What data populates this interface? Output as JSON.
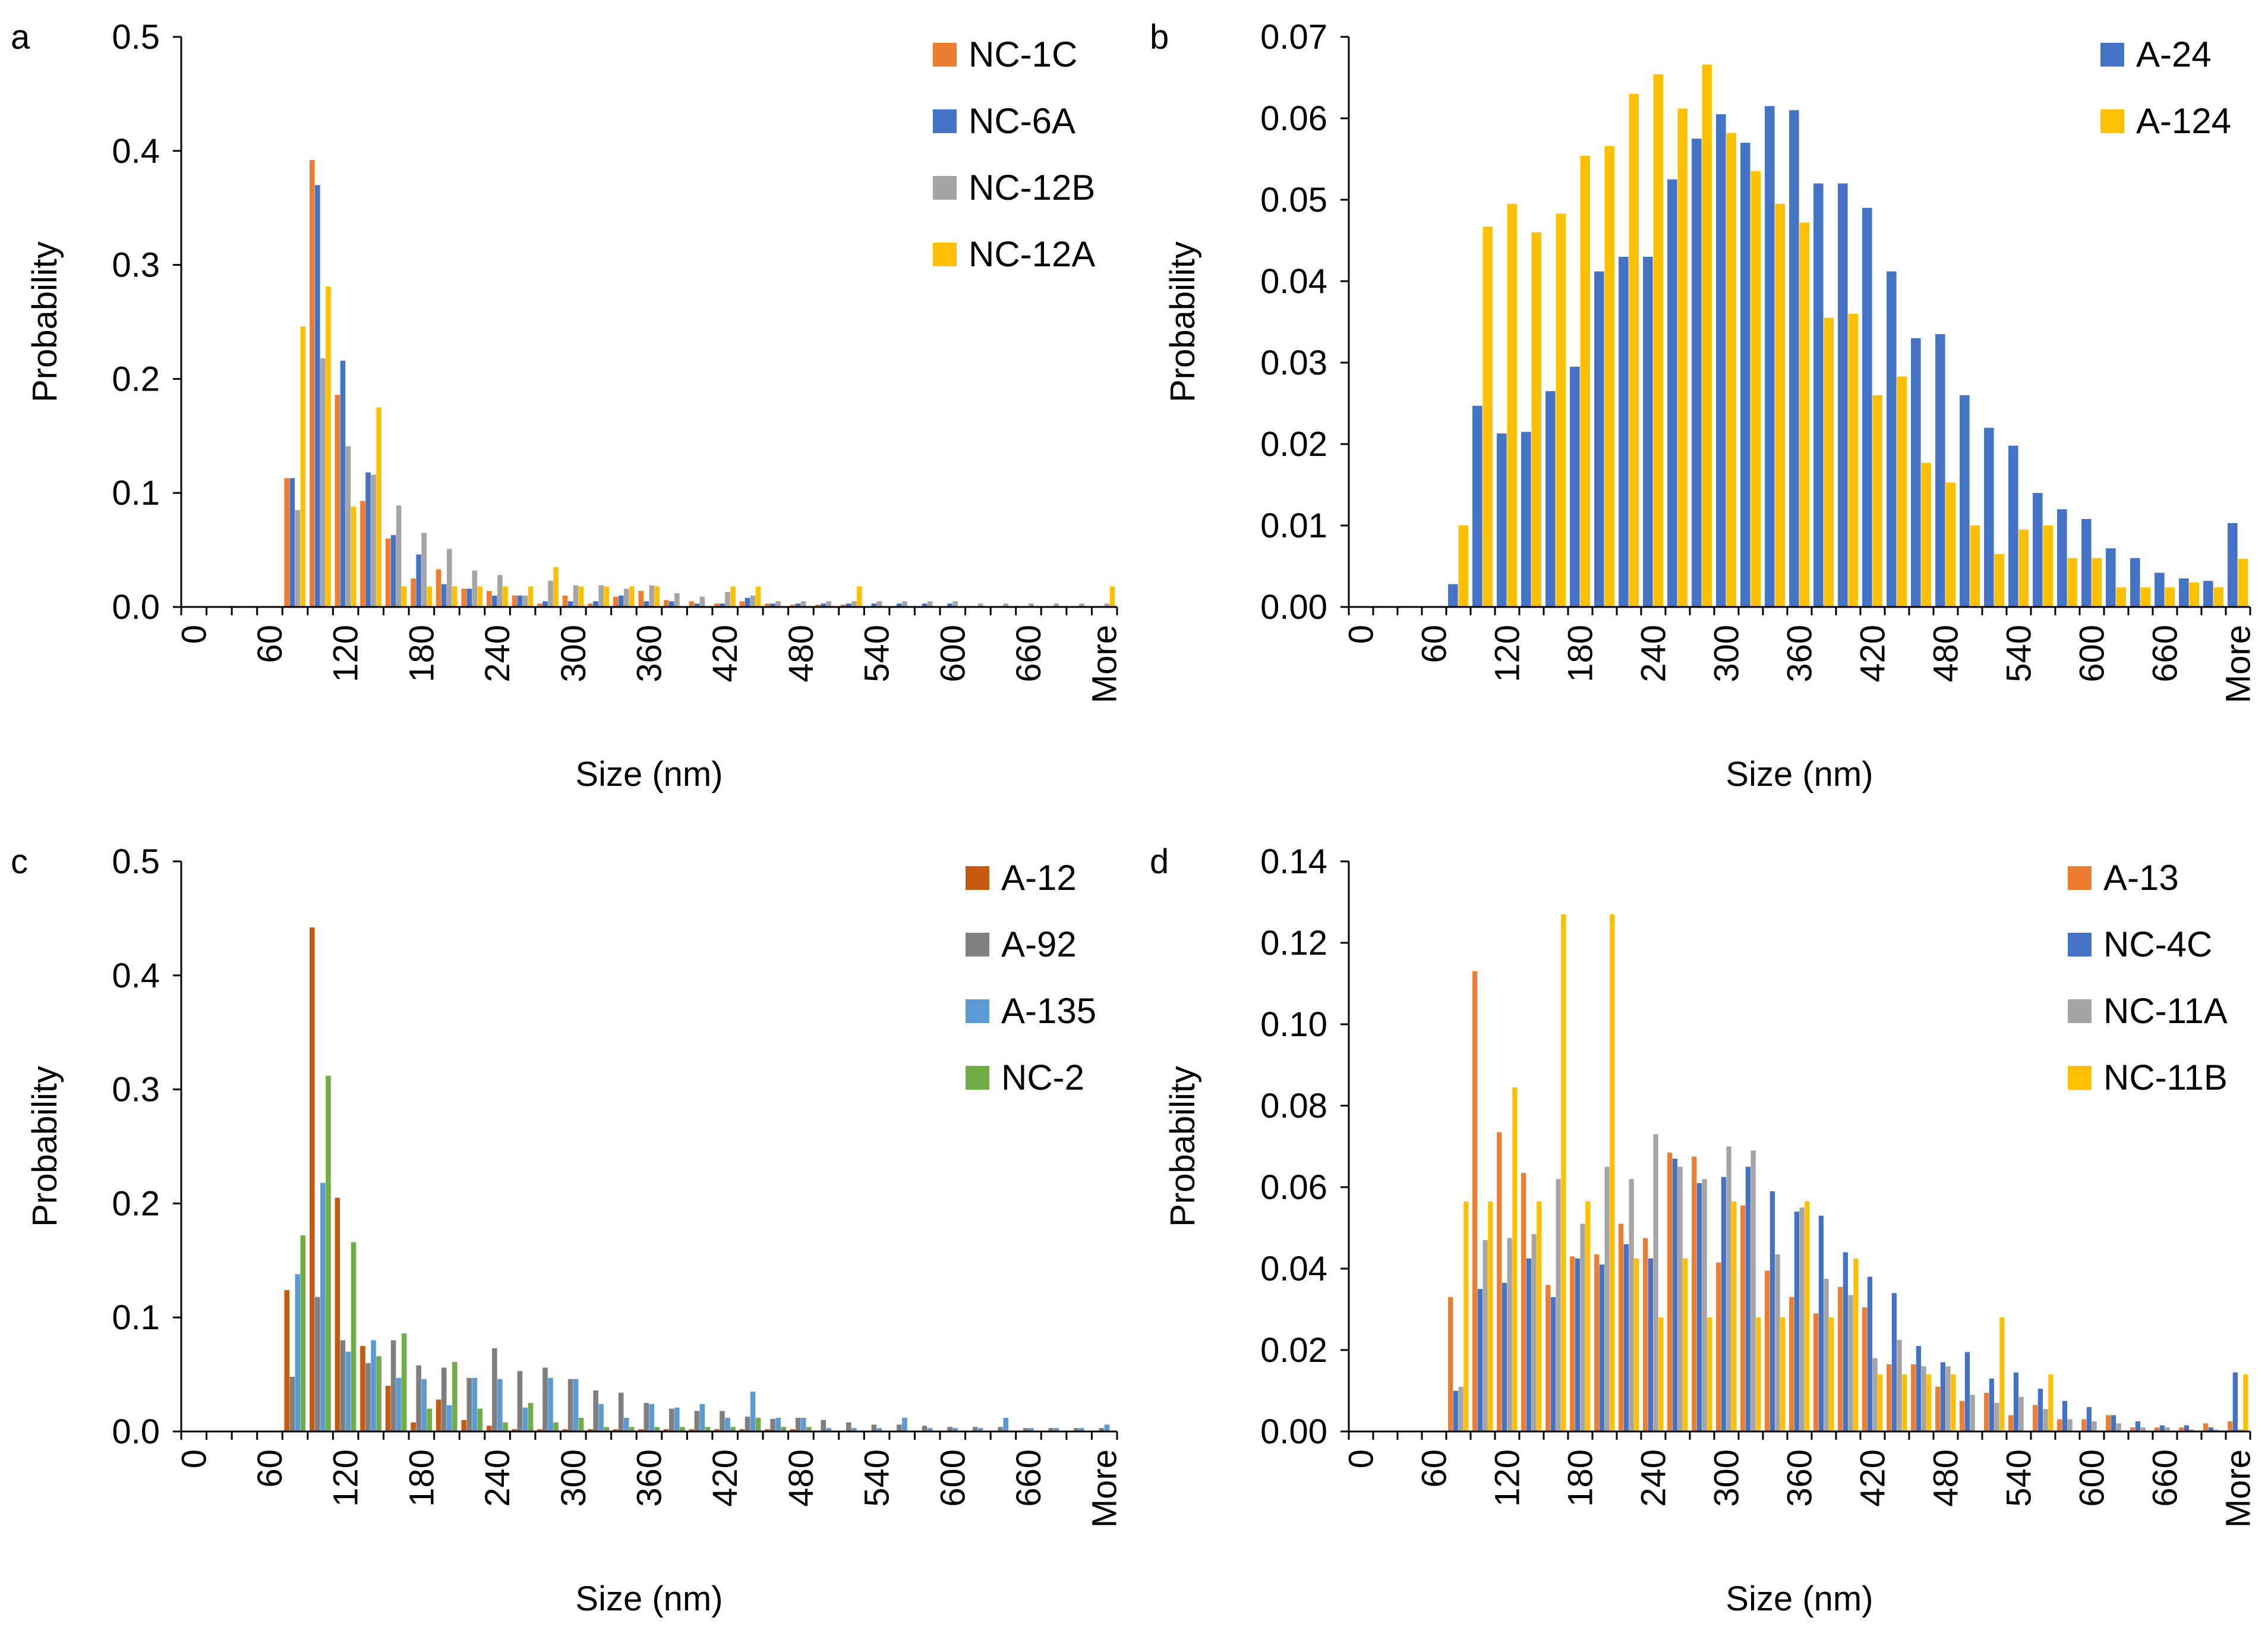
{
  "chart_data": [
    {
      "panel_label": "a",
      "type": "bar",
      "xlabel": "Size (nm)",
      "ylabel": "Probability",
      "ylim": [
        0,
        0.5
      ],
      "ytick_labels": [
        "0.0",
        "0.1",
        "0.2",
        "0.3",
        "0.4",
        "0.5"
      ],
      "categories": [
        "0",
        "20",
        "40",
        "60",
        "80",
        "100",
        "120",
        "140",
        "160",
        "180",
        "200",
        "220",
        "240",
        "260",
        "280",
        "300",
        "320",
        "340",
        "360",
        "380",
        "400",
        "420",
        "440",
        "460",
        "480",
        "500",
        "520",
        "540",
        "560",
        "580",
        "600",
        "620",
        "640",
        "660",
        "680",
        "700",
        "More"
      ],
      "xtick_labels": [
        "0",
        "",
        "",
        "60",
        "",
        "",
        "120",
        "",
        "",
        "180",
        "",
        "",
        "240",
        "",
        "",
        "300",
        "",
        "",
        "360",
        "",
        "",
        "420",
        "",
        "",
        "480",
        "",
        "",
        "540",
        "",
        "",
        "600",
        "",
        "",
        "660",
        "",
        "",
        "More"
      ],
      "legend_position": "top-right",
      "series": [
        {
          "name": "NC-1C",
          "color": "#ED7D31",
          "values": [
            0,
            0,
            0,
            0,
            0.113,
            0.392,
            0.186,
            0.093,
            0.06,
            0.025,
            0.033,
            0.016,
            0.014,
            0.01,
            0.003,
            0.01,
            0.003,
            0.009,
            0.014,
            0.006,
            0.005,
            0.003,
            0.005,
            0.003,
            0.002,
            0.002,
            0.002,
            0,
            0,
            0,
            0,
            0,
            0,
            0,
            0,
            0,
            0
          ]
        },
        {
          "name": "NC-6A",
          "color": "#4472C4",
          "values": [
            0,
            0,
            0,
            0,
            0.113,
            0.37,
            0.216,
            0.118,
            0.063,
            0.046,
            0.02,
            0.016,
            0.01,
            0.01,
            0.005,
            0.005,
            0.005,
            0.01,
            0.005,
            0.005,
            0.003,
            0.003,
            0.008,
            0.003,
            0.003,
            0.003,
            0.003,
            0.003,
            0.003,
            0.003,
            0.003,
            0,
            0,
            0,
            0,
            0,
            0
          ]
        },
        {
          "name": "NC-12B",
          "color": "#A5A5A5",
          "values": [
            0,
            0,
            0,
            0,
            0.085,
            0.218,
            0.141,
            0.116,
            0.089,
            0.065,
            0.051,
            0.032,
            0.028,
            0.01,
            0.023,
            0.019,
            0.019,
            0.016,
            0.019,
            0.012,
            0.009,
            0.013,
            0.01,
            0.005,
            0.005,
            0.005,
            0.005,
            0.005,
            0.005,
            0.005,
            0.005,
            0.003,
            0.003,
            0.003,
            0.003,
            0.003,
            0.003
          ]
        },
        {
          "name": "NC-12A",
          "color": "#FFC000",
          "values": [
            0,
            0,
            0,
            0,
            0.246,
            0.281,
            0.088,
            0.175,
            0.018,
            0.018,
            0.018,
            0.018,
            0.018,
            0.018,
            0.035,
            0.018,
            0.018,
            0.018,
            0.018,
            0,
            0,
            0.018,
            0.018,
            0,
            0,
            0,
            0.018,
            0,
            0,
            0,
            0,
            0,
            0,
            0,
            0,
            0,
            0.018
          ]
        }
      ]
    },
    {
      "panel_label": "b",
      "type": "bar",
      "xlabel": "Size (nm)",
      "ylabel": "Probability",
      "ylim": [
        0,
        0.07
      ],
      "ytick_labels": [
        "0.00",
        "0.01",
        "0.02",
        "0.03",
        "0.04",
        "0.05",
        "0.06",
        "0.07"
      ],
      "categories": [
        "0",
        "20",
        "40",
        "60",
        "80",
        "100",
        "120",
        "140",
        "160",
        "180",
        "200",
        "220",
        "240",
        "260",
        "280",
        "300",
        "320",
        "340",
        "360",
        "380",
        "400",
        "420",
        "440",
        "460",
        "480",
        "500",
        "520",
        "540",
        "560",
        "580",
        "600",
        "620",
        "640",
        "660",
        "680",
        "700",
        "More"
      ],
      "xtick_labels": [
        "0",
        "",
        "",
        "60",
        "",
        "",
        "120",
        "",
        "",
        "180",
        "",
        "",
        "240",
        "",
        "",
        "300",
        "",
        "",
        "360",
        "",
        "",
        "420",
        "",
        "",
        "480",
        "",
        "",
        "540",
        "",
        "",
        "600",
        "",
        "",
        "660",
        "",
        "",
        "More"
      ],
      "legend_position": "top-right",
      "series": [
        {
          "name": "A-24",
          "color": "#4472C4",
          "values": [
            0,
            0,
            0,
            0,
            0.0028,
            0.0247,
            0.0213,
            0.0215,
            0.0265,
            0.0295,
            0.0412,
            0.043,
            0.043,
            0.0525,
            0.0575,
            0.0605,
            0.057,
            0.0615,
            0.061,
            0.052,
            0.052,
            0.049,
            0.0412,
            0.033,
            0.0335,
            0.026,
            0.022,
            0.0198,
            0.014,
            0.012,
            0.0108,
            0.0072,
            0.006,
            0.0042,
            0.0035,
            0.0032,
            0.0103
          ]
        },
        {
          "name": "A-124",
          "color": "#FFC000",
          "values": [
            0,
            0,
            0,
            0,
            0.01,
            0.0467,
            0.0495,
            0.046,
            0.0483,
            0.0554,
            0.0566,
            0.063,
            0.0654,
            0.0612,
            0.0666,
            0.0582,
            0.0535,
            0.0495,
            0.0472,
            0.0355,
            0.036,
            0.026,
            0.0283,
            0.0177,
            0.0153,
            0.01,
            0.0065,
            0.0095,
            0.01,
            0.006,
            0.006,
            0.0024,
            0.0024,
            0.0024,
            0.003,
            0.0024,
            0.0059
          ]
        }
      ]
    },
    {
      "panel_label": "c",
      "type": "bar",
      "xlabel": "Size (nm)",
      "ylabel": "Probability",
      "ylim": [
        0,
        0.5
      ],
      "ytick_labels": [
        "0.0",
        "0.1",
        "0.2",
        "0.3",
        "0.4",
        "0.5"
      ],
      "categories": [
        "0",
        "20",
        "40",
        "60",
        "80",
        "100",
        "120",
        "140",
        "160",
        "180",
        "200",
        "220",
        "240",
        "260",
        "280",
        "300",
        "320",
        "340",
        "360",
        "380",
        "400",
        "420",
        "440",
        "460",
        "480",
        "500",
        "520",
        "540",
        "560",
        "580",
        "600",
        "620",
        "640",
        "660",
        "680",
        "700",
        "More"
      ],
      "xtick_labels": [
        "0",
        "",
        "",
        "60",
        "",
        "",
        "120",
        "",
        "",
        "180",
        "",
        "",
        "240",
        "",
        "",
        "300",
        "",
        "",
        "360",
        "",
        "",
        "420",
        "",
        "",
        "480",
        "",
        "",
        "540",
        "",
        "",
        "600",
        "",
        "",
        "660",
        "",
        "",
        "More"
      ],
      "legend_position": "top-right",
      "series": [
        {
          "name": "A-12",
          "color": "#C55A11",
          "values": [
            0,
            0,
            0,
            0,
            0.124,
            0.442,
            0.205,
            0.075,
            0.04,
            0.008,
            0.028,
            0.01,
            0.005,
            0.002,
            0.002,
            0.002,
            0.002,
            0.002,
            0.002,
            0.002,
            0.002,
            0.002,
            0.002,
            0.002,
            0.002,
            0,
            0,
            0,
            0,
            0,
            0,
            0,
            0,
            0,
            0,
            0,
            0
          ]
        },
        {
          "name": "A-92",
          "color": "#7F7F7F",
          "values": [
            0,
            0,
            0,
            0,
            0.048,
            0.118,
            0.08,
            0.06,
            0.08,
            0.058,
            0.056,
            0.047,
            0.073,
            0.053,
            0.056,
            0.046,
            0.036,
            0.034,
            0.025,
            0.02,
            0.018,
            0.018,
            0.013,
            0.011,
            0.012,
            0.01,
            0.008,
            0.006,
            0.006,
            0.005,
            0.004,
            0.004,
            0.004,
            0.003,
            0.003,
            0.003,
            0.003
          ]
        },
        {
          "name": "A-135",
          "color": "#5B9BD5",
          "values": [
            0,
            0,
            0,
            0,
            0.138,
            0.218,
            0.07,
            0.08,
            0.047,
            0.046,
            0.023,
            0.047,
            0.046,
            0.021,
            0.047,
            0.046,
            0.024,
            0.012,
            0.024,
            0.021,
            0.024,
            0.012,
            0.035,
            0.012,
            0.012,
            0.003,
            0.003,
            0.003,
            0.012,
            0.003,
            0.003,
            0.003,
            0.012,
            0.003,
            0.003,
            0.003,
            0.006
          ]
        },
        {
          "name": "NC-2",
          "color": "#70AD47",
          "values": [
            0,
            0,
            0,
            0,
            0.172,
            0.312,
            0.166,
            0.066,
            0.086,
            0.02,
            0.061,
            0.02,
            0.008,
            0.025,
            0.008,
            0.012,
            0.004,
            0.004,
            0.004,
            0.004,
            0.004,
            0.004,
            0.012,
            0.004,
            0.004,
            0,
            0,
            0,
            0,
            0,
            0,
            0,
            0,
            0,
            0,
            0,
            0
          ]
        }
      ]
    },
    {
      "panel_label": "d",
      "type": "bar",
      "xlabel": "Size (nm)",
      "ylabel": "Probability",
      "ylim": [
        0,
        0.14
      ],
      "ytick_labels": [
        "0.00",
        "0.02",
        "0.04",
        "0.06",
        "0.08",
        "0.10",
        "0.12",
        "0.14"
      ],
      "categories": [
        "0",
        "20",
        "40",
        "60",
        "80",
        "100",
        "120",
        "140",
        "160",
        "180",
        "200",
        "220",
        "240",
        "260",
        "280",
        "300",
        "320",
        "340",
        "360",
        "380",
        "400",
        "420",
        "440",
        "460",
        "480",
        "500",
        "520",
        "540",
        "560",
        "580",
        "600",
        "620",
        "640",
        "660",
        "680",
        "700",
        "More"
      ],
      "xtick_labels": [
        "0",
        "",
        "",
        "60",
        "",
        "",
        "120",
        "",
        "",
        "180",
        "",
        "",
        "240",
        "",
        "",
        "300",
        "",
        "",
        "360",
        "",
        "",
        "420",
        "",
        "",
        "480",
        "",
        "",
        "540",
        "",
        "",
        "600",
        "",
        "",
        "660",
        "",
        "",
        "More"
      ],
      "legend_position": "top-right",
      "series": [
        {
          "name": "A-13",
          "color": "#ED7D31",
          "values": [
            0,
            0,
            0,
            0,
            0.033,
            0.113,
            0.0735,
            0.0635,
            0.036,
            0.043,
            0.0435,
            0.051,
            0.0475,
            0.0685,
            0.0675,
            0.0415,
            0.0555,
            0.0395,
            0.033,
            0.029,
            0.0355,
            0.0305,
            0.0165,
            0.0165,
            0.011,
            0.0075,
            0.0095,
            0.004,
            0.0065,
            0.003,
            0.003,
            0.004,
            0.001,
            0.001,
            0.001,
            0.002,
            0.0025
          ]
        },
        {
          "name": "NC-4C",
          "color": "#4472C4",
          "values": [
            0,
            0,
            0,
            0,
            0.01,
            0.035,
            0.0365,
            0.0425,
            0.033,
            0.0425,
            0.041,
            0.046,
            0.0425,
            0.067,
            0.061,
            0.0625,
            0.065,
            0.059,
            0.054,
            0.053,
            0.044,
            0.038,
            0.034,
            0.021,
            0.017,
            0.0195,
            0.013,
            0.0145,
            0.0105,
            0.0075,
            0.006,
            0.004,
            0.0025,
            0.0015,
            0.0015,
            0.001,
            0.0145
          ]
        },
        {
          "name": "NC-11A",
          "color": "#A5A5A5",
          "values": [
            0,
            0,
            0,
            0,
            0.011,
            0.047,
            0.0475,
            0.0485,
            0.062,
            0.051,
            0.065,
            0.062,
            0.073,
            0.065,
            0.062,
            0.07,
            0.069,
            0.0435,
            0.055,
            0.0375,
            0.0335,
            0.018,
            0.0225,
            0.016,
            0.016,
            0.009,
            0.007,
            0.0085,
            0.0055,
            0.003,
            0.0025,
            0.002,
            0.001,
            0.001,
            0.0005,
            0.0005,
            0.0005
          ]
        },
        {
          "name": "NC-11B",
          "color": "#FFC000",
          "values": [
            0,
            0,
            0,
            0,
            0.0565,
            0.0565,
            0.0845,
            0.0565,
            0.127,
            0.0565,
            0.127,
            0.0425,
            0.028,
            0.0425,
            0.028,
            0.0565,
            0.028,
            0.028,
            0.0565,
            0.028,
            0.0425,
            0.014,
            0.014,
            0.014,
            0.014,
            0,
            0.028,
            0,
            0.014,
            0,
            0,
            0,
            0,
            0,
            0,
            0,
            0.014
          ]
        }
      ]
    }
  ]
}
